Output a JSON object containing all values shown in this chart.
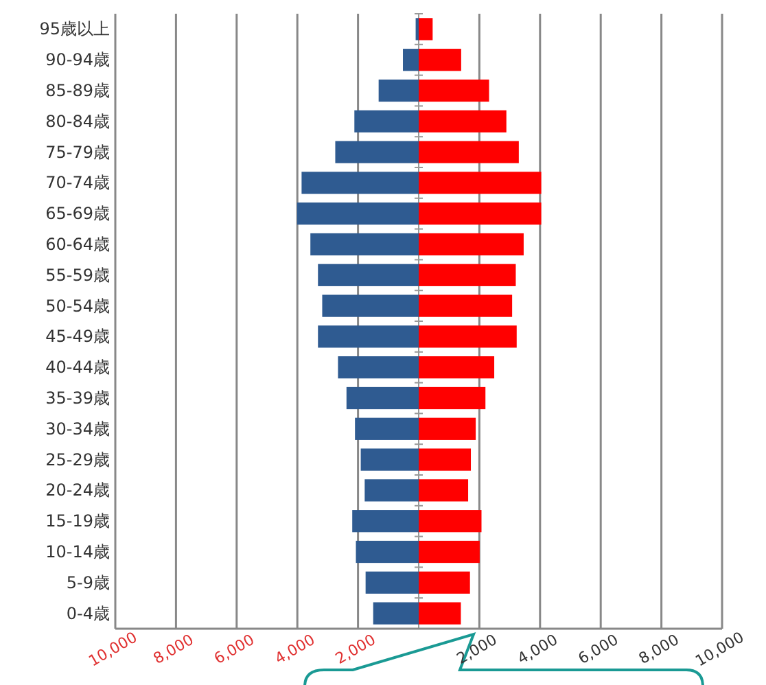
{
  "chart_data": {
    "type": "bar",
    "orientation": "horizontal",
    "stacked": true,
    "categories": [
      "95歳以上",
      "90-94歳",
      "85-89歳",
      "80-84歳",
      "75-79歳",
      "70-74歳",
      "65-69歳",
      "60-64歳",
      "55-59歳",
      "50-54歳",
      "45-49歳",
      "40-44歳",
      "35-39歳",
      "30-34歳",
      "25-29歳",
      "20-24歳",
      "15-19歳",
      "10-14歳",
      "5-9歳",
      "0-4歳"
    ],
    "series": [
      {
        "color": "#2f5b91",
        "values": [
          -100,
          -520,
          -1320,
          -2120,
          -2750,
          -3860,
          -4010,
          -3570,
          -3320,
          -3180,
          -3320,
          -2660,
          -2380,
          -2100,
          -1910,
          -1780,
          -2190,
          -2070,
          -1750,
          -1500
        ]
      },
      {
        "color": "#ff0000",
        "values": [
          460,
          1400,
          2320,
          2890,
          3300,
          4040,
          4040,
          3460,
          3200,
          3080,
          3230,
          2490,
          2200,
          1880,
          1720,
          1630,
          2070,
          2010,
          1690,
          1390
        ]
      }
    ],
    "xlim": [
      -10000,
      10000
    ],
    "xticks": [
      {
        "value": -10000,
        "label": "10,000"
      },
      {
        "value": -8000,
        "label": "8,000"
      },
      {
        "value": -6000,
        "label": "6,000"
      },
      {
        "value": -4000,
        "label": "4,000"
      },
      {
        "value": -2000,
        "label": "2,000"
      },
      {
        "value": 2000,
        "label": "2,000"
      },
      {
        "value": 4000,
        "label": "4,000"
      },
      {
        "value": 6000,
        "label": "6,000"
      },
      {
        "value": 8000,
        "label": "8,000"
      },
      {
        "value": 10000,
        "label": "10,000"
      }
    ],
    "grid": "x"
  }
}
